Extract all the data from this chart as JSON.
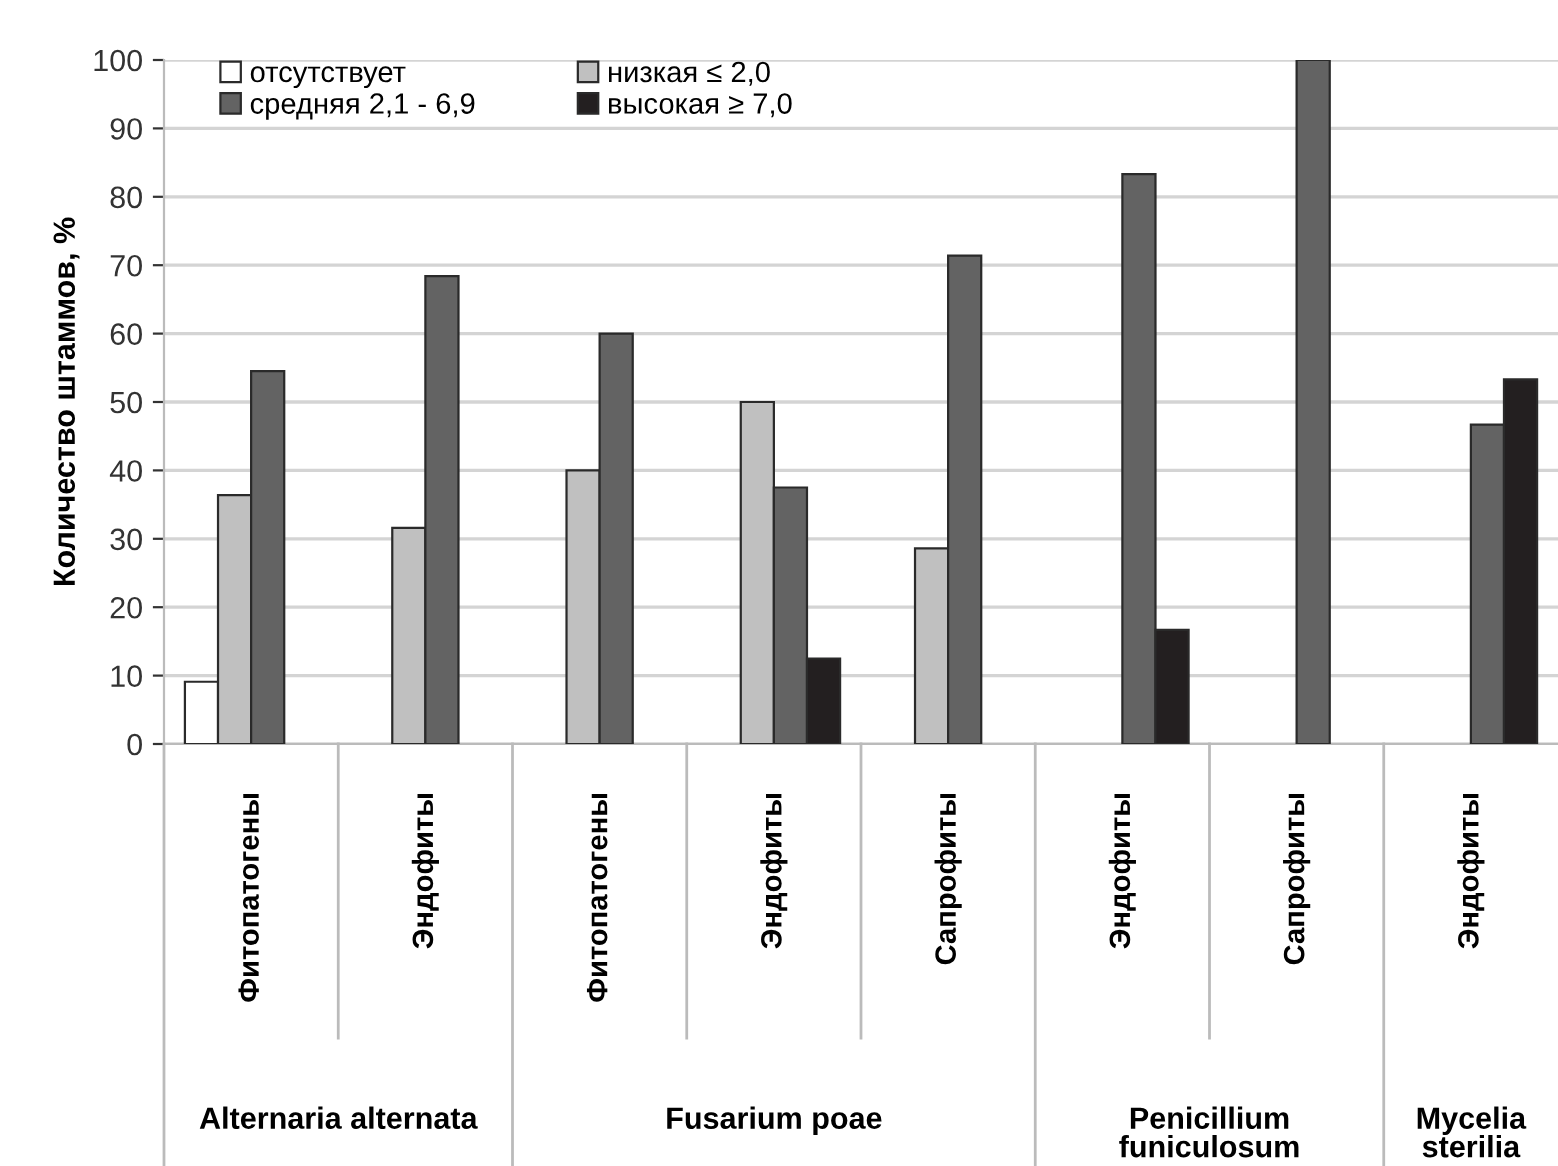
{
  "chart_data": {
    "type": "bar",
    "ylabel": "Количество штаммов, %",
    "categories": [
      "Фитопатогены",
      "Эндофиты",
      "Фитопатогены",
      "Эндофиты",
      "Сапрофиты",
      "Эндофиты",
      "Сапрофиты",
      "Эндофиты"
    ],
    "series": [
      {
        "name": "отсутствует",
        "color": "#ffffff",
        "values": [
          9.1,
          null,
          null,
          null,
          null,
          null,
          null,
          null
        ]
      },
      {
        "name": "низкая ≤ 2,0",
        "color": "#c0c0c0",
        "values": [
          36.4,
          31.6,
          40,
          50,
          28.6,
          null,
          null,
          null
        ]
      },
      {
        "name": "средняя 2,1 - 6,9",
        "color": "#636363",
        "values": [
          54.5,
          68.4,
          60,
          37.5,
          71.4,
          83.3,
          100,
          46.7
        ]
      },
      {
        "name": "высокая ≥ 7,0",
        "color": "#231f20",
        "values": [
          null,
          null,
          null,
          12.5,
          null,
          16.7,
          null,
          53.3
        ]
      }
    ],
    "annotations": [
      "Alternaria alternata",
      "Fusarium poae",
      "Penicillium funiculosum",
      "Mycelia sterilia"
    ],
    "ylim": [
      0,
      100
    ],
    "yticks": [
      0,
      10,
      20,
      30,
      40,
      50,
      60,
      70,
      80,
      90,
      100
    ],
    "grid": "y",
    "legend": "top left"
  }
}
